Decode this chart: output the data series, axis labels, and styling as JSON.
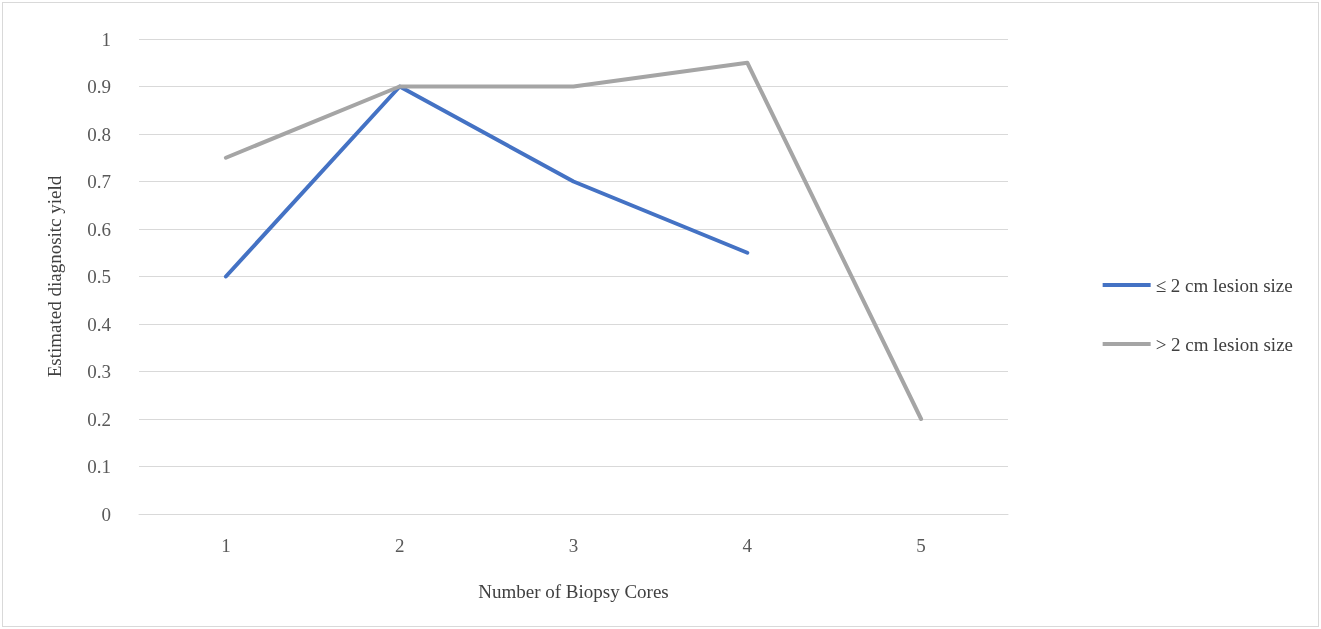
{
  "chart_data": {
    "type": "line",
    "xlabel": "Number of Biopsy Cores",
    "ylabel": "Estimated diagnositc yield",
    "categories": [
      "1",
      "2",
      "3",
      "4",
      "5"
    ],
    "series": [
      {
        "name": "≤ 2 cm lesion size",
        "color": "#4472c4",
        "values": [
          0.5,
          0.9,
          0.7,
          0.55,
          null
        ]
      },
      {
        "name": "> 2 cm lesion size",
        "color": "#a5a5a5",
        "values": [
          0.75,
          0.9,
          0.9,
          0.95,
          0.2
        ]
      }
    ],
    "ylim": [
      0,
      1
    ],
    "yticks": [
      0,
      0.1,
      0.2,
      0.3,
      0.4,
      0.5,
      0.6,
      0.7,
      0.8,
      0.9,
      1
    ],
    "grid": "y",
    "legend": "right",
    "marker": "none",
    "line_style": "solid"
  }
}
